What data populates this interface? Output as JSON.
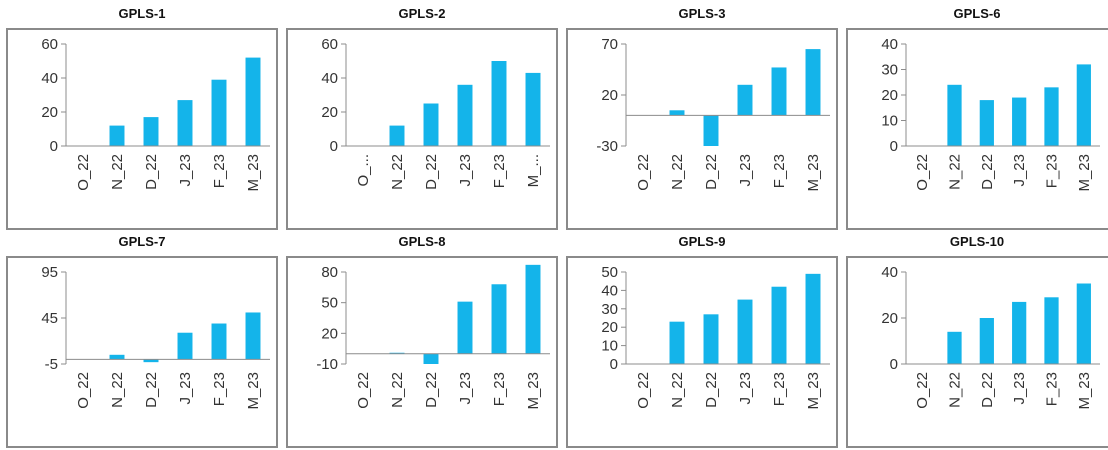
{
  "style": {
    "bar_color": "#14b4ea",
    "axis_color": "#8c8c8c",
    "frame_color": "#8a8a8a"
  },
  "chart_data": [
    {
      "title": "GPLS-1",
      "type": "bar",
      "categories": [
        "O_22",
        "N_22",
        "D_22",
        "J_23",
        "F_23",
        "M_23"
      ],
      "values": [
        0,
        12,
        17,
        27,
        39,
        52
      ],
      "ylim": [
        0,
        60
      ],
      "yticks": [
        0,
        20,
        40,
        60
      ]
    },
    {
      "title": "GPLS-2",
      "type": "bar",
      "categories": [
        "O_...",
        "N_22",
        "D_22",
        "J_23",
        "F_23",
        "M_..."
      ],
      "values": [
        0,
        12,
        25,
        36,
        50,
        43
      ],
      "ylim": [
        0,
        60
      ],
      "yticks": [
        0,
        20,
        40,
        60
      ]
    },
    {
      "title": "GPLS-3",
      "type": "bar",
      "categories": [
        "O_22",
        "N_22",
        "D_22",
        "J_23",
        "F_23",
        "M_23"
      ],
      "values": [
        0,
        5,
        -30,
        30,
        47,
        65
      ],
      "ylim": [
        -30,
        70
      ],
      "yticks": [
        -30,
        20,
        70
      ]
    },
    {
      "title": "GPLS-6",
      "type": "bar",
      "categories": [
        "O_22",
        "N_22",
        "D_22",
        "J_23",
        "F_23",
        "M_23"
      ],
      "values": [
        0,
        24,
        18,
        19,
        23,
        32
      ],
      "ylim": [
        0,
        40
      ],
      "yticks": [
        0,
        10,
        20,
        30,
        40
      ]
    },
    {
      "title": "GPLS-7",
      "type": "bar",
      "categories": [
        "O_22",
        "N_22",
        "D_22",
        "J_23",
        "F_23",
        "M_23"
      ],
      "values": [
        0,
        5,
        -3,
        29,
        39,
        51
      ],
      "ylim": [
        -5,
        95
      ],
      "yticks": [
        -5,
        45,
        95
      ]
    },
    {
      "title": "GPLS-8",
      "type": "bar",
      "categories": [
        "O_22",
        "N_22",
        "D_22",
        "J_23",
        "F_23",
        "M_23"
      ],
      "values": [
        0,
        1,
        -10,
        51,
        68,
        87
      ],
      "ylim": [
        -10,
        80
      ],
      "yticks": [
        -10,
        20,
        50,
        80
      ]
    },
    {
      "title": "GPLS-9",
      "type": "bar",
      "categories": [
        "O_22",
        "N_22",
        "D_22",
        "J_23",
        "F_23",
        "M_23"
      ],
      "values": [
        0,
        23,
        27,
        35,
        42,
        49
      ],
      "ylim": [
        0,
        50
      ],
      "yticks": [
        0,
        10,
        20,
        30,
        40,
        50
      ]
    },
    {
      "title": "GPLS-10",
      "type": "bar",
      "categories": [
        "O_22",
        "N_22",
        "D_22",
        "J_23",
        "F_23",
        "M_23"
      ],
      "values": [
        0,
        14,
        20,
        27,
        29,
        35
      ],
      "ylim": [
        0,
        40
      ],
      "yticks": [
        0,
        20,
        40
      ]
    }
  ]
}
